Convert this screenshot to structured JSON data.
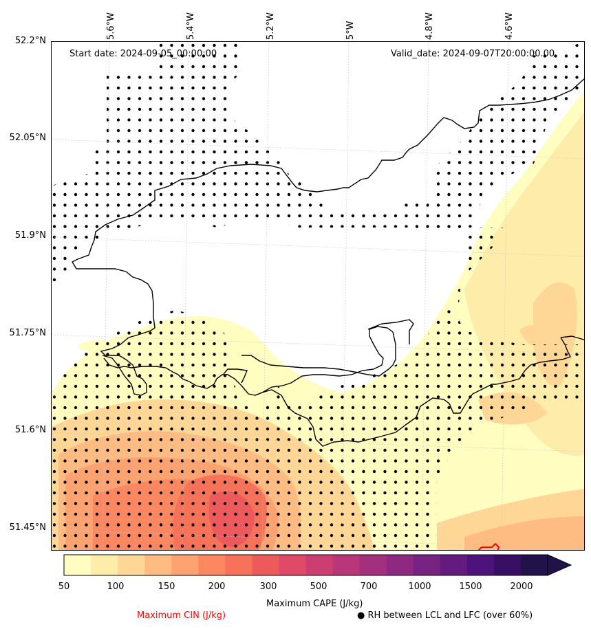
{
  "annotations": {
    "start_date": "Start date: 2024-09-05_00:00:00",
    "valid_date": "Valid_date: 2024-09-07T20:00:00.00"
  },
  "axes": {
    "lon_ticks": [
      "5.6°W",
      "5.4°W",
      "5.2°W",
      "5°W",
      "4.8°W",
      "4.6°W"
    ],
    "lat_ticks": [
      "52.2°N",
      "52.05°N",
      "51.9°N",
      "51.75°N",
      "51.6°N",
      "51.45°N"
    ]
  },
  "colorbar": {
    "title": "Maximum CAPE (J/kg)",
    "tick_labels": [
      "50",
      "100",
      "150",
      "200",
      "300",
      "500",
      "700",
      "1000",
      "1500",
      "2000"
    ],
    "colors": [
      "#fffdc0",
      "#feecaa",
      "#fed797",
      "#febc83",
      "#fda371",
      "#fb8861",
      "#f67258",
      "#ec5a5c",
      "#de4a68",
      "#cc3e71",
      "#b73779",
      "#a2307d",
      "#8d2980",
      "#782281",
      "#631b80",
      "#4e127b",
      "#380f65",
      "#22124a"
    ]
  },
  "legend": {
    "cin": "Maximum CIN (J/kg)",
    "rh": "● RH between LCL and LFC (over 60%)",
    "cin_color": "#ff0000"
  },
  "chart_data": {
    "type": "heatmap",
    "title": "",
    "variable": "Maximum CAPE (J/kg)",
    "levels": [
      50,
      100,
      150,
      200,
      300,
      500,
      700,
      1000,
      1500,
      2000
    ],
    "lon_range": [
      -5.7,
      -4.45
    ],
    "lat_range": [
      51.42,
      52.2
    ],
    "xlabel": "",
    "ylabel": "",
    "overlays": [
      "Maximum CIN (J/kg) contours",
      "RH between LCL and LFC (over 60%) stipple dots",
      "coastline"
    ],
    "max_cape_region": "around 51.48°N 5.3°W, 200–300 J/kg"
  }
}
